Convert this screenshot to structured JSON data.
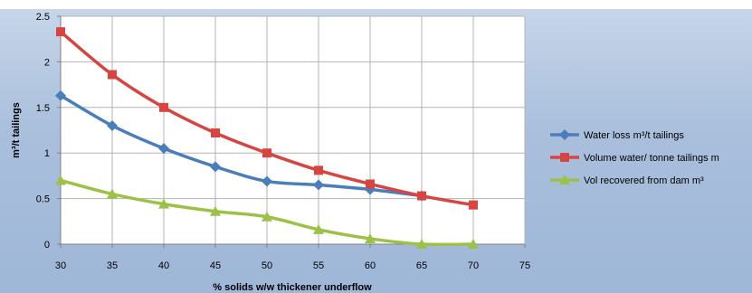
{
  "chart_data": {
    "type": "line",
    "title": "",
    "xlabel": "% solids w/w thickener underflow",
    "ylabel": "m³/t tailings",
    "xlim": [
      30,
      75
    ],
    "ylim": [
      0,
      2.5
    ],
    "x_ticks": [
      "30",
      "35",
      "40",
      "45",
      "50",
      "55",
      "60",
      "65",
      "70",
      "75"
    ],
    "y_ticks": [
      "0",
      "0.5",
      "1",
      "1.5",
      "2",
      "2.5"
    ],
    "x": [
      30,
      35,
      40,
      45,
      50,
      55,
      60,
      65,
      70
    ],
    "grid": true,
    "legend_position": "right",
    "series": [
      {
        "name": "Water loss m³/t tailings",
        "color": "#4a7ebb",
        "marker": "diamond",
        "values": [
          1.63,
          1.3,
          1.05,
          0.85,
          0.69,
          0.65,
          0.6,
          0.53,
          null
        ]
      },
      {
        "name": "Volume water/ tonne tailings m",
        "color": "#d64541",
        "marker": "square",
        "values": [
          2.33,
          1.86,
          1.5,
          1.22,
          1.0,
          0.81,
          0.66,
          0.53,
          0.43
        ]
      },
      {
        "name": "Vol recovered from dam m³",
        "color": "#9bc247",
        "marker": "triangle",
        "values": [
          0.7,
          0.55,
          0.44,
          0.36,
          0.3,
          0.16,
          0.06,
          0.0,
          0.0
        ]
      }
    ]
  }
}
